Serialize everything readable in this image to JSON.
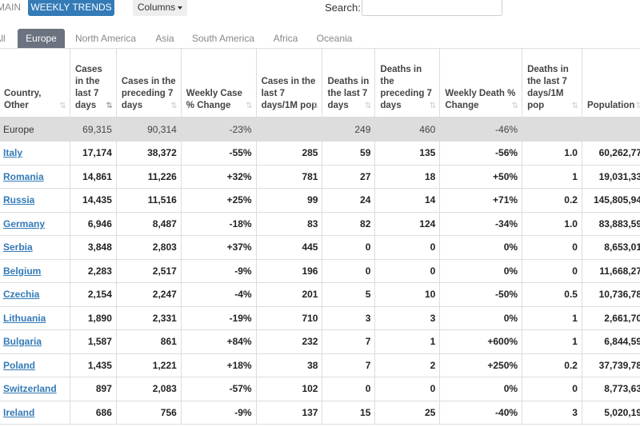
{
  "toolbar": {
    "main_label": "MAIN",
    "weekly_trends_label": "WEEKLY TRENDS",
    "columns_label": "Columns",
    "search_label": "Search:",
    "search_value": ""
  },
  "tabs": [
    {
      "label": "All"
    },
    {
      "label": "Europe"
    },
    {
      "label": "North America"
    },
    {
      "label": "Asia"
    },
    {
      "label": "South America"
    },
    {
      "label": "Africa"
    },
    {
      "label": "Oceania"
    }
  ],
  "headers": [
    "Country, Other",
    "Cases in the last 7 days",
    "Cases in the preceding 7 days",
    "Weekly Case % Change",
    "Cases in the last 7 days/1M pop",
    "Deaths in the last 7 days",
    "Deaths in the preceding 7 days",
    "Weekly Death % Change",
    "Deaths in the last 7 days/1M pop",
    "Population"
  ],
  "summary": [
    "Europe",
    "69,315",
    "90,314",
    "-23%",
    "",
    "249",
    "460",
    "-46%",
    "",
    ""
  ],
  "rows": [
    [
      "Italy",
      "17,174",
      "38,372",
      "-55%",
      "285",
      "59",
      "135",
      "-56%",
      "1.0",
      "60,262,77"
    ],
    [
      "Romania",
      "14,861",
      "11,226",
      "+32%",
      "781",
      "27",
      "18",
      "+50%",
      "1",
      "19,031,33"
    ],
    [
      "Russia",
      "14,435",
      "11,516",
      "+25%",
      "99",
      "24",
      "14",
      "+71%",
      "0.2",
      "145,805,94"
    ],
    [
      "Germany",
      "6,946",
      "8,487",
      "-18%",
      "83",
      "82",
      "124",
      "-34%",
      "1.0",
      "83,883,59"
    ],
    [
      "Serbia",
      "3,848",
      "2,803",
      "+37%",
      "445",
      "0",
      "0",
      "0%",
      "0",
      "8,653,01"
    ],
    [
      "Belgium",
      "2,283",
      "2,517",
      "-9%",
      "196",
      "0",
      "0",
      "0%",
      "0",
      "11,668,27"
    ],
    [
      "Czechia",
      "2,154",
      "2,247",
      "-4%",
      "201",
      "5",
      "10",
      "-50%",
      "0.5",
      "10,736,78"
    ],
    [
      "Lithuania",
      "1,890",
      "2,331",
      "-19%",
      "710",
      "3",
      "3",
      "0%",
      "1",
      "2,661,70"
    ],
    [
      "Bulgaria",
      "1,587",
      "861",
      "+84%",
      "232",
      "7",
      "1",
      "+600%",
      "1",
      "6,844,59"
    ],
    [
      "Poland",
      "1,435",
      "1,221",
      "+18%",
      "38",
      "7",
      "2",
      "+250%",
      "0.2",
      "37,739,78"
    ],
    [
      "Switzerland",
      "897",
      "2,083",
      "-57%",
      "102",
      "0",
      "0",
      "0%",
      "0",
      "8,773,63"
    ],
    [
      "Ireland",
      "686",
      "756",
      "-9%",
      "137",
      "15",
      "25",
      "-40%",
      "3",
      "5,020,19"
    ]
  ]
}
